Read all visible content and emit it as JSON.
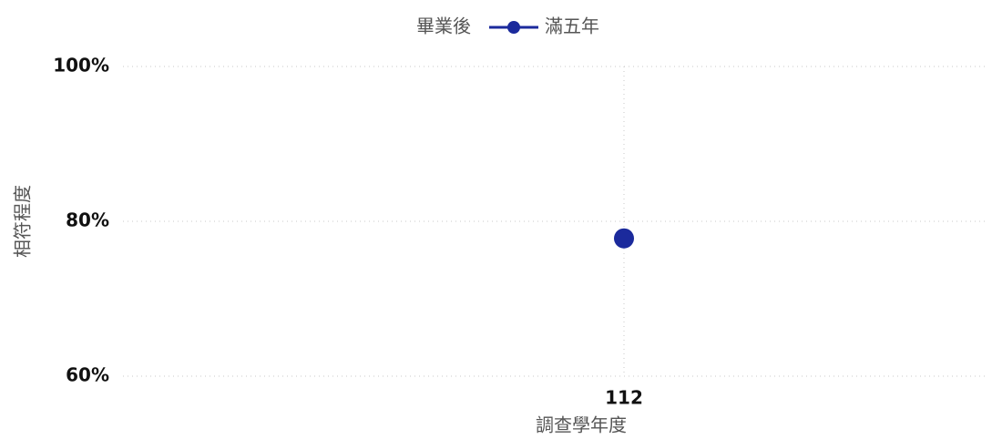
{
  "chart_data": {
    "type": "line",
    "legend_title": "畢業後",
    "x_label": "調查學年度",
    "y_label": "相符程度",
    "categories": [
      "112"
    ],
    "series": [
      {
        "name": "滿五年",
        "color": "#1b2a9c",
        "values": [
          77.8
        ]
      }
    ],
    "ylim": [
      60,
      100
    ],
    "yticks": [
      {
        "value": 60,
        "label": "60%"
      },
      {
        "value": 80,
        "label": "80%"
      },
      {
        "value": 100,
        "label": "100%"
      }
    ],
    "grid": true,
    "legend": "top"
  }
}
